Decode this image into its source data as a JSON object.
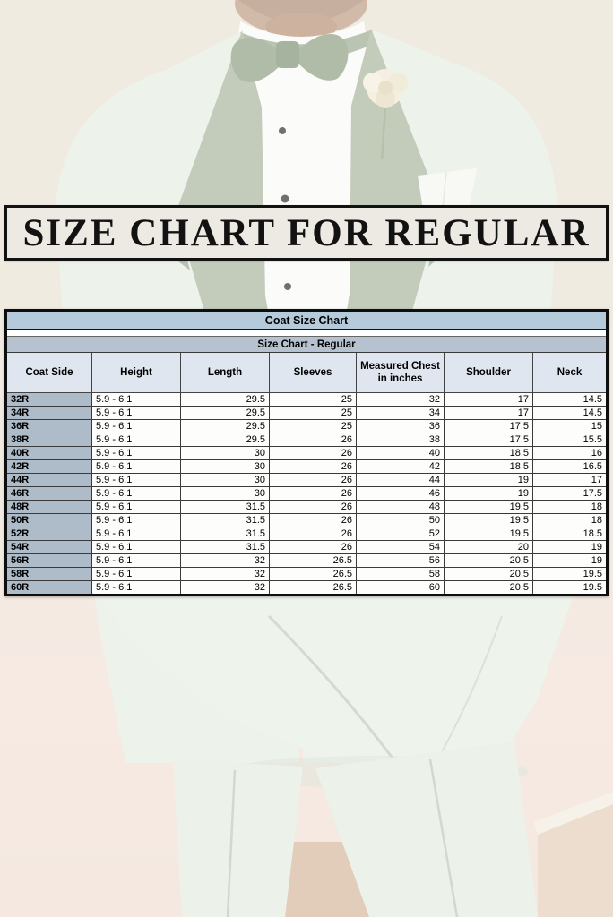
{
  "banner": {
    "title": "SIZE CHART FOR REGULAR"
  },
  "chart_data": {
    "type": "table",
    "title": "Coat Size Chart",
    "subtitle": "Size Chart - Regular",
    "columns": [
      "Coat Side",
      "Height",
      "Length",
      "Sleeves",
      "Measured Chest in inches",
      "Shoulder",
      "Neck"
    ],
    "rows": [
      [
        "32R",
        "5.9 - 6.1",
        "29.5",
        "25",
        "32",
        "17",
        "14.5"
      ],
      [
        "34R",
        "5.9 - 6.1",
        "29.5",
        "25",
        "34",
        "17",
        "14.5"
      ],
      [
        "36R",
        "5.9 - 6.1",
        "29.5",
        "25",
        "36",
        "17.5",
        "15"
      ],
      [
        "38R",
        "5.9 - 6.1",
        "29.5",
        "26",
        "38",
        "17.5",
        "15.5"
      ],
      [
        "40R",
        "5.9 - 6.1",
        "30",
        "26",
        "40",
        "18.5",
        "16"
      ],
      [
        "42R",
        "5.9 - 6.1",
        "30",
        "26",
        "42",
        "18.5",
        "16.5"
      ],
      [
        "44R",
        "5.9 - 6.1",
        "30",
        "26",
        "44",
        "19",
        "17"
      ],
      [
        "46R",
        "5.9 - 6.1",
        "30",
        "26",
        "46",
        "19",
        "17.5"
      ],
      [
        "48R",
        "5.9 - 6.1",
        "31.5",
        "26",
        "48",
        "19.5",
        "18"
      ],
      [
        "50R",
        "5.9 - 6.1",
        "31.5",
        "26",
        "50",
        "19.5",
        "18"
      ],
      [
        "52R",
        "5.9 - 6.1",
        "31.5",
        "26",
        "52",
        "19.5",
        "18.5"
      ],
      [
        "54R",
        "5.9 - 6.1",
        "31.5",
        "26",
        "54",
        "20",
        "19"
      ],
      [
        "56R",
        "5.9 - 6.1",
        "32",
        "26.5",
        "56",
        "20.5",
        "19"
      ],
      [
        "58R",
        "5.9 - 6.1",
        "32",
        "26.5",
        "58",
        "20.5",
        "19.5"
      ],
      [
        "60R",
        "5.9 - 6.1",
        "32",
        "26.5",
        "60",
        "20.5",
        "19.5"
      ]
    ],
    "layout": {
      "title_fill": "#b5cadb",
      "subtitle_fill": "#b6c2cf",
      "column_header_fill": "#dfe6f0",
      "row_header_fill": "#aebcca",
      "border_color": "#0e0e0e",
      "grid": true
    }
  },
  "photo": {
    "elements": [
      "chin-beard",
      "bow-tie",
      "tuxedo-jacket",
      "satin-lapels",
      "dress-shirt",
      "shirt-studs",
      "boutonniere-flower",
      "pocket-square",
      "jacket-hem",
      "trousers",
      "floor"
    ],
    "colors": {
      "background_top": "#ece7db",
      "background_bottom": "#f4e6dd",
      "suit": "#e9efe6",
      "lapel": "#b6c1ad",
      "bow_tie": "#9fae95",
      "shirt": "#fbfcf9",
      "flower": "#f2ecda",
      "floor": "#dcc3ab",
      "banner_bg": "#edeae3"
    }
  }
}
